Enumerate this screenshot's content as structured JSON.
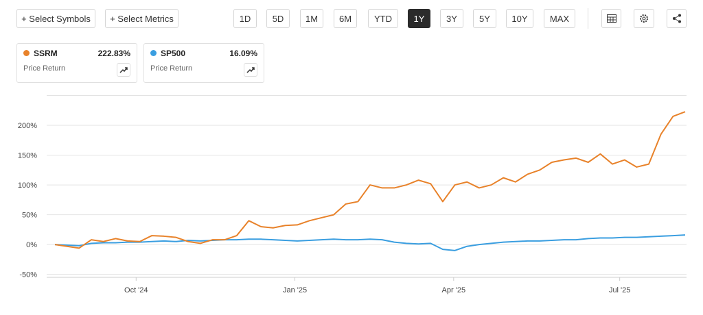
{
  "toolbar": {
    "left_buttons": [
      "+ Select Symbols",
      "+ Select Metrics"
    ],
    "ranges": [
      "1D",
      "5D",
      "1M",
      "6M",
      "YTD",
      "1Y",
      "3Y",
      "5Y",
      "10Y",
      "MAX"
    ],
    "active_range": "1Y"
  },
  "cards": [
    {
      "symbol": "SSRM",
      "value": "222.83%",
      "metric": "Price Return"
    },
    {
      "symbol": "SP500",
      "value": "16.09%",
      "metric": "Price Return"
    }
  ],
  "chart_data": {
    "type": "line",
    "xlim": [
      0,
      52
    ],
    "xticks": [
      {
        "value": 6.7,
        "label": "Oct '24"
      },
      {
        "value": 19.8,
        "label": "Jan '25"
      },
      {
        "value": 32.9,
        "label": "Apr '25"
      },
      {
        "value": 46.6,
        "label": "Jul '25"
      }
    ],
    "ylim": [
      -55,
      250
    ],
    "yticks": [
      {
        "value": -50,
        "label": "-50%"
      },
      {
        "value": 0,
        "label": "0%"
      },
      {
        "value": 50,
        "label": "50%"
      },
      {
        "value": 100,
        "label": "100%"
      },
      {
        "value": 150,
        "label": "150%"
      },
      {
        "value": 200,
        "label": "200%"
      }
    ],
    "grid": true,
    "series": [
      {
        "name": "SSRM",
        "color": "#e8822a",
        "values": [
          0,
          -3,
          -6,
          8,
          5,
          10,
          6,
          5,
          15,
          14,
          12,
          5,
          2,
          8,
          8,
          15,
          40,
          30,
          28,
          32,
          33,
          40,
          45,
          50,
          68,
          72,
          100,
          95,
          95,
          100,
          108,
          102,
          72,
          100,
          105,
          95,
          100,
          112,
          105,
          118,
          125,
          138,
          142,
          145,
          138,
          152,
          135,
          142,
          130,
          135,
          185,
          215,
          222.83
        ]
      },
      {
        "name": "SP500",
        "color": "#3a9ee0",
        "values": [
          0,
          -1,
          -2,
          2,
          3,
          3,
          4,
          4,
          5,
          6,
          5,
          7,
          6,
          7,
          8,
          8,
          9,
          9,
          8,
          7,
          6,
          7,
          8,
          9,
          8,
          8,
          9,
          8,
          4,
          2,
          1,
          2,
          -8,
          -10,
          -3,
          0,
          2,
          4,
          5,
          6,
          6,
          7,
          8,
          8,
          10,
          11,
          11,
          12,
          12,
          13,
          14,
          15,
          16.09
        ]
      }
    ]
  }
}
